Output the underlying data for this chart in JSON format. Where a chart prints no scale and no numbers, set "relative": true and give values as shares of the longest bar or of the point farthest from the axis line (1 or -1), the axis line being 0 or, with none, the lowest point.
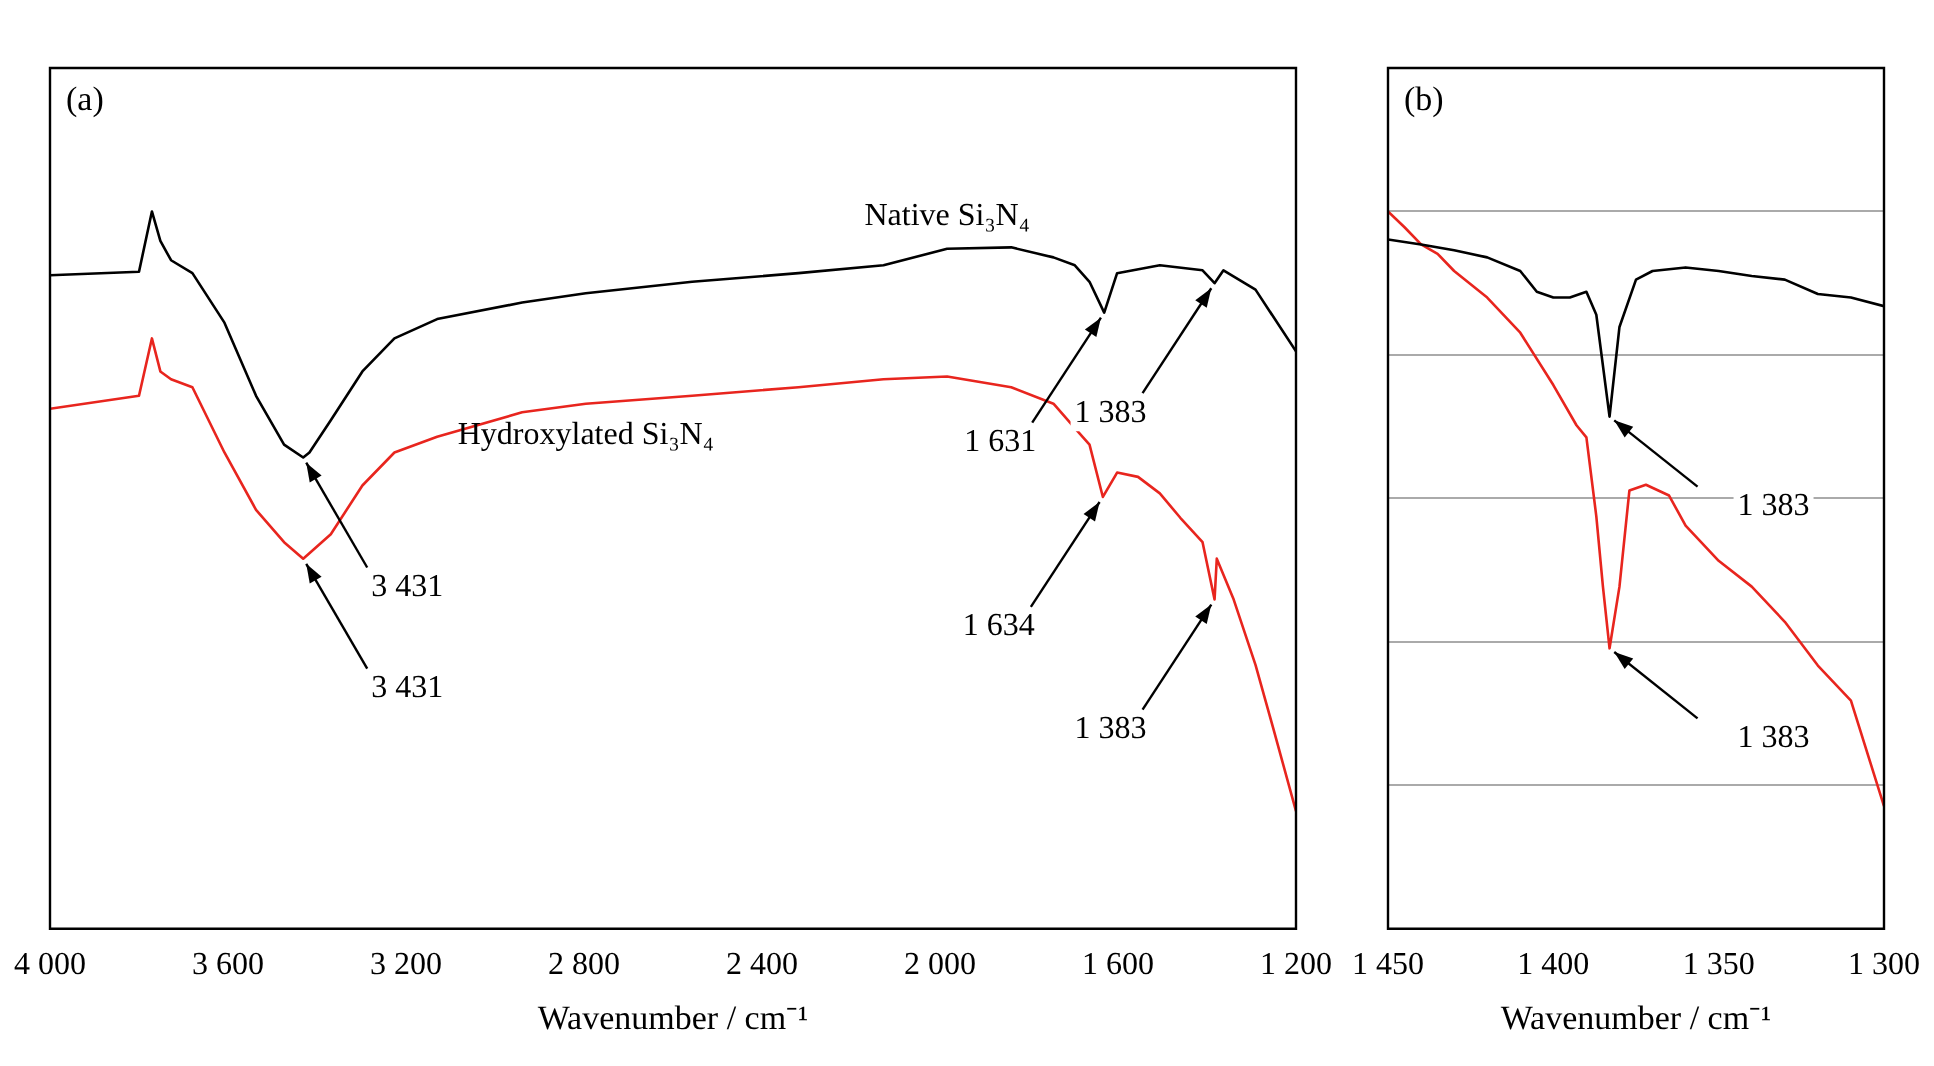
{
  "chart_data": [
    {
      "type": "line",
      "title": "(a)",
      "xlabel": "Wavenumber / cm⁻¹",
      "relative": true,
      "grid": false,
      "legend": false,
      "marker": "none",
      "line_style": "solid",
      "xlim": [
        4000,
        1200
      ],
      "xticks": [
        {
          "value": 4000,
          "label": "4 000"
        },
        {
          "value": 3600,
          "label": "3 600"
        },
        {
          "value": 3200,
          "label": "3 200"
        },
        {
          "value": 2800,
          "label": "2 800"
        },
        {
          "value": 2400,
          "label": "2 400"
        },
        {
          "value": 2000,
          "label": "2 000"
        },
        {
          "value": 1600,
          "label": "1 600"
        },
        {
          "value": 1200,
          "label": "1 200"
        }
      ],
      "series": [
        {
          "name": "Native Si₃N₄",
          "color": "#000000",
          "x": [
            4000,
            3800,
            3771,
            3752,
            3728,
            3680,
            3608,
            3537,
            3474,
            3431,
            3417,
            3369,
            3298,
            3226,
            3130,
            2939,
            2796,
            2557,
            2318,
            2127,
            1984,
            1840,
            1745,
            1697,
            1664,
            1631,
            1602,
            1506,
            1410,
            1383,
            1363,
            1291,
            1200
          ],
          "values": [
            0.911,
            0.916,
            1.0,
            0.959,
            0.932,
            0.914,
            0.845,
            0.743,
            0.675,
            0.657,
            0.664,
            0.709,
            0.777,
            0.823,
            0.85,
            0.873,
            0.886,
            0.902,
            0.914,
            0.925,
            0.948,
            0.95,
            0.936,
            0.925,
            0.902,
            0.859,
            0.914,
            0.925,
            0.918,
            0.9,
            0.918,
            0.891,
            0.805
          ]
        },
        {
          "name": "Hydroxylated Si₃N₄",
          "color": "#e8251e",
          "x": [
            4000,
            3800,
            3771,
            3752,
            3728,
            3680,
            3608,
            3537,
            3474,
            3431,
            3369,
            3298,
            3226,
            3130,
            2939,
            2796,
            2557,
            2318,
            2127,
            1984,
            1840,
            1745,
            1697,
            1664,
            1634,
            1602,
            1555,
            1506,
            1460,
            1410,
            1383,
            1378,
            1340,
            1291,
            1250,
            1200
          ],
          "values": [
            0.725,
            0.743,
            0.823,
            0.777,
            0.766,
            0.755,
            0.664,
            0.584,
            0.539,
            0.516,
            0.55,
            0.618,
            0.664,
            0.686,
            0.72,
            0.732,
            0.743,
            0.755,
            0.766,
            0.77,
            0.755,
            0.732,
            0.698,
            0.675,
            0.602,
            0.636,
            0.63,
            0.607,
            0.573,
            0.539,
            0.459,
            0.516,
            0.459,
            0.368,
            0.277,
            0.164
          ]
        }
      ],
      "annotations": [
        {
          "text": "3 431",
          "x": 3431,
          "y": 0.657
        },
        {
          "text": "3 431",
          "x": 3431,
          "y": 0.516
        },
        {
          "text": "1 631",
          "x": 1631,
          "y": 0.859
        },
        {
          "text": "1 383",
          "x": 1383,
          "y": 0.9
        },
        {
          "text": "1 634",
          "x": 1634,
          "y": 0.602
        },
        {
          "text": "1 383",
          "x": 1383,
          "y": 0.459
        }
      ]
    },
    {
      "type": "line",
      "title": "(b)",
      "xlabel": "Wavenumber / cm⁻¹",
      "relative": true,
      "grid": "y",
      "legend": false,
      "marker": "none",
      "line_style": "solid",
      "xlim": [
        1450,
        1300
      ],
      "xticks": [
        {
          "value": 1450,
          "label": "1 450"
        },
        {
          "value": 1400,
          "label": "1 400"
        },
        {
          "value": 1350,
          "label": "1 350"
        },
        {
          "value": 1300,
          "label": "1 300"
        }
      ],
      "series": [
        {
          "color": "#000000",
          "x": [
            1450,
            1440,
            1430,
            1420,
            1410,
            1405,
            1400,
            1395,
            1390,
            1387,
            1383,
            1380,
            1375,
            1370,
            1360,
            1350,
            1340,
            1330,
            1320,
            1310,
            1300
          ],
          "values": [
            0.961,
            0.954,
            0.946,
            0.936,
            0.917,
            0.888,
            0.88,
            0.88,
            0.888,
            0.856,
            0.714,
            0.839,
            0.905,
            0.917,
            0.922,
            0.917,
            0.91,
            0.905,
            0.885,
            0.88,
            0.868
          ]
        },
        {
          "color": "#e8251e",
          "x": [
            1450,
            1445,
            1440,
            1435,
            1430,
            1420,
            1410,
            1400,
            1393,
            1390,
            1387,
            1385,
            1383,
            1380,
            1377,
            1372,
            1365,
            1360,
            1350,
            1340,
            1330,
            1320,
            1310,
            1300
          ],
          "values": [
            1.0,
            0.978,
            0.954,
            0.941,
            0.917,
            0.88,
            0.831,
            0.758,
            0.702,
            0.685,
            0.575,
            0.477,
            0.391,
            0.477,
            0.611,
            0.619,
            0.604,
            0.562,
            0.513,
            0.477,
            0.428,
            0.367,
            0.318,
            0.171
          ]
        }
      ],
      "annotations": [
        {
          "text": "1 383",
          "x": 1383,
          "y": 0.714
        },
        {
          "text": "1 383",
          "x": 1383,
          "y": 0.391
        }
      ]
    }
  ]
}
